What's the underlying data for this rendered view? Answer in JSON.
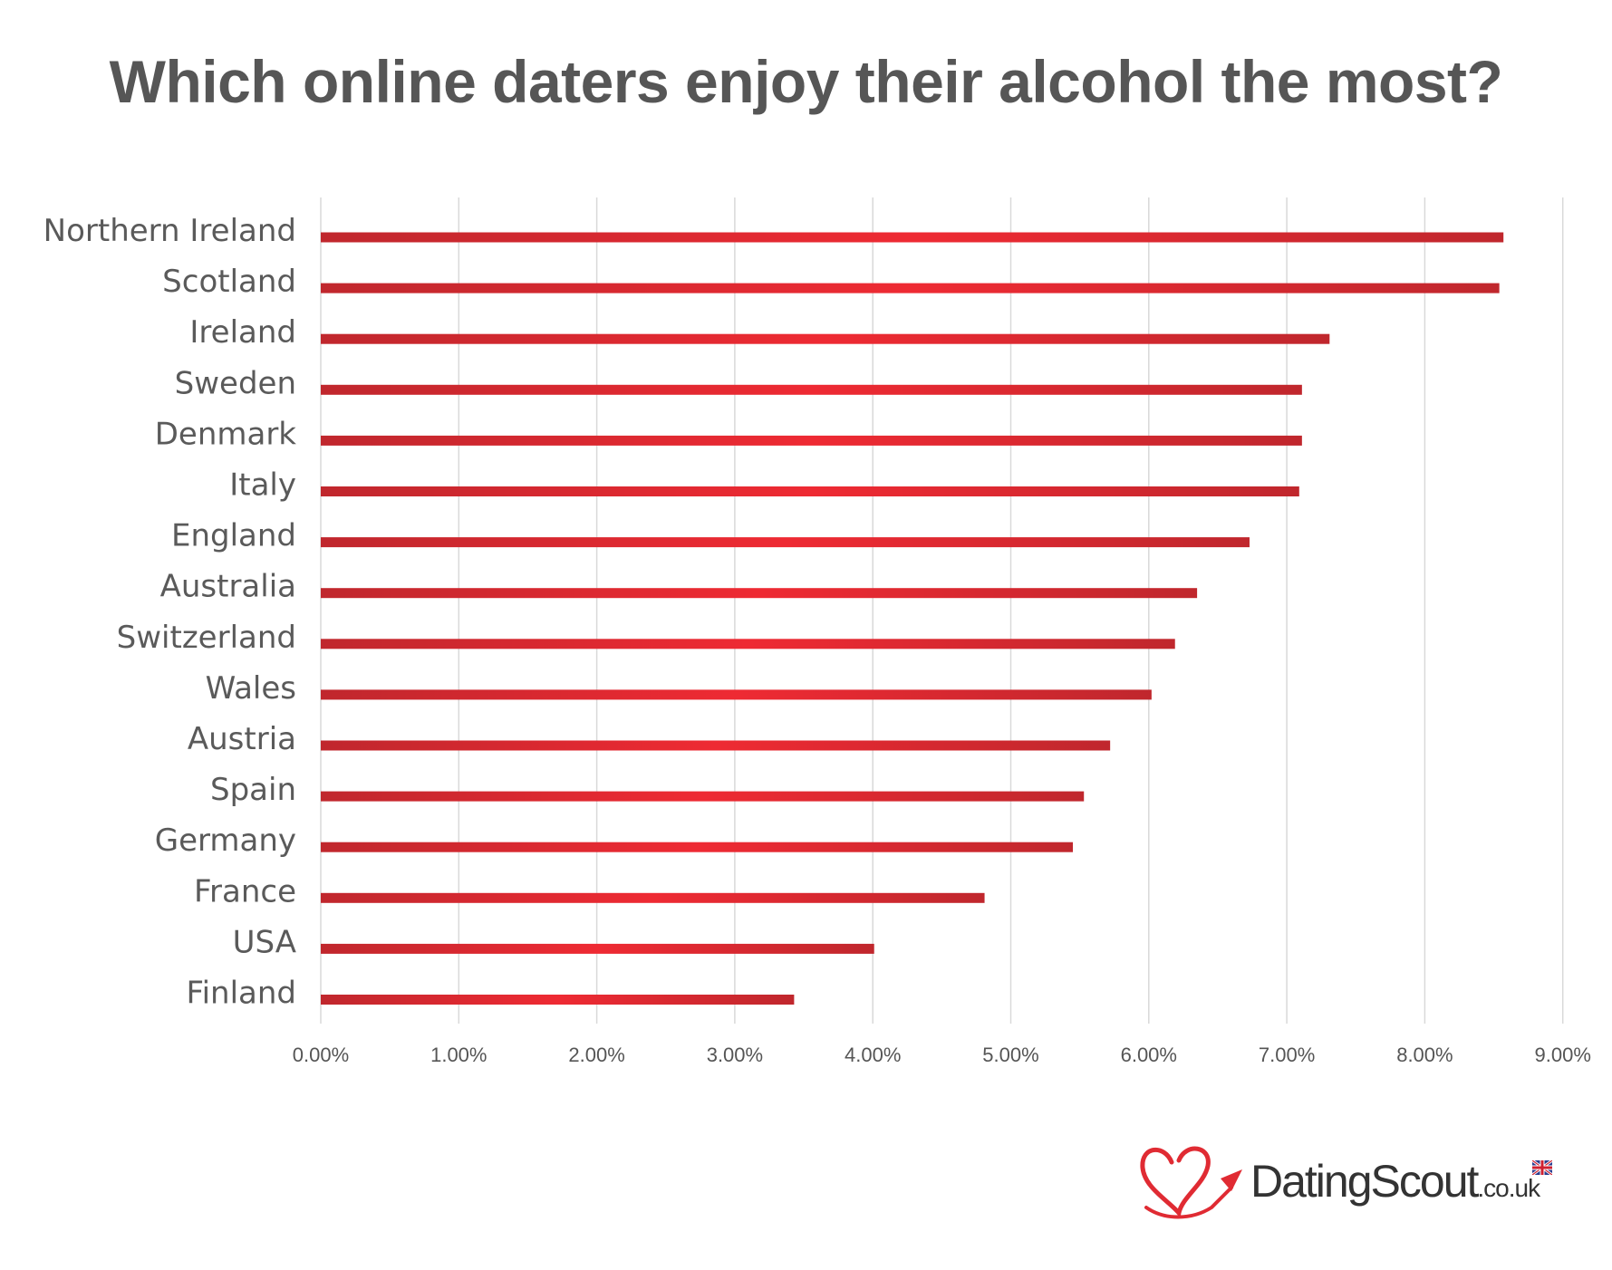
{
  "title": "Which online daters enjoy their alcohol the most?",
  "chart_data": {
    "type": "bar",
    "orientation": "horizontal",
    "title": "Which online daters enjoy their alcohol the most?",
    "xlabel": "",
    "ylabel": "",
    "categories": [
      "Northern Ireland",
      "Scotland",
      "Ireland",
      "Sweden",
      "Denmark",
      "Italy",
      "England",
      "Australia",
      "Switzerland",
      "Wales",
      "Austria",
      "Spain",
      "Germany",
      "France",
      "USA",
      "Finland"
    ],
    "values": [
      8.57,
      8.54,
      7.31,
      7.11,
      7.11,
      7.09,
      6.73,
      6.35,
      6.19,
      6.02,
      5.72,
      5.53,
      5.45,
      4.81,
      4.01,
      3.43
    ],
    "value_unit": "%",
    "xlim": [
      0,
      9
    ],
    "xticks": [
      "0.00%",
      "1.00%",
      "2.00%",
      "3.00%",
      "4.00%",
      "5.00%",
      "6.00%",
      "7.00%",
      "8.00%",
      "9.00%"
    ],
    "grid": "vertical",
    "legend": "none",
    "colors": {
      "bar_edge": "#c0272d",
      "bar_center": "#ee2a33",
      "grid": "#d9d9d9",
      "label": "#5a5a5a",
      "title": "#565656"
    }
  },
  "logo": {
    "brand": "DatingScout",
    "tld": ".co.uk",
    "icon": "heart-icon",
    "flag": "uk-flag-icon",
    "accent": "#e02b33"
  }
}
